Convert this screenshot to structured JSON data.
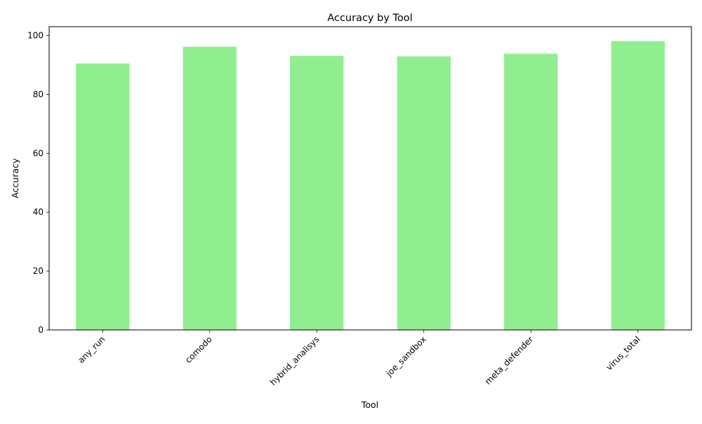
{
  "chart_data": {
    "type": "bar",
    "title": "Accuracy by Tool",
    "xlabel": "Tool",
    "ylabel": "Accuracy",
    "categories": [
      "any_run",
      "comodo",
      "hybrid_analisys",
      "joe_sandbox",
      "meta_defender",
      "virus_total"
    ],
    "values": [
      90.5,
      96.2,
      93.1,
      92.9,
      93.8,
      98.1
    ],
    "ylim": [
      0,
      103
    ],
    "yticks": [
      0,
      20,
      40,
      60,
      80,
      100
    ],
    "grid": false,
    "legend": "none",
    "bar_color": "#90ee90"
  }
}
